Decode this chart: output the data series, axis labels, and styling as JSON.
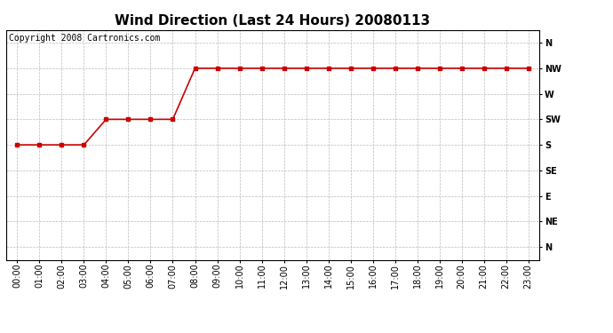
{
  "title": "Wind Direction (Last 24 Hours) 20080113",
  "copyright_text": "Copyright 2008 Cartronics.com",
  "x_labels": [
    "00:00",
    "01:00",
    "02:00",
    "03:00",
    "04:00",
    "05:00",
    "06:00",
    "07:00",
    "08:00",
    "09:00",
    "10:00",
    "11:00",
    "12:00",
    "13:00",
    "14:00",
    "15:00",
    "16:00",
    "17:00",
    "18:00",
    "19:00",
    "20:00",
    "21:00",
    "22:00",
    "23:00"
  ],
  "y_labels_bottom_to_top": [
    "N",
    "NE",
    "E",
    "SE",
    "S",
    "SW",
    "W",
    "NW",
    "N"
  ],
  "data_x": [
    0,
    1,
    2,
    3,
    4,
    5,
    6,
    7,
    8,
    9,
    10,
    11,
    12,
    13,
    14,
    15,
    16,
    17,
    18,
    19,
    20,
    21,
    22,
    23
  ],
  "data_y": [
    4,
    4,
    4,
    4,
    5,
    5,
    5,
    5,
    7,
    7,
    7,
    7,
    7,
    7,
    7,
    7,
    7,
    7,
    7,
    7,
    7,
    7,
    7,
    7
  ],
  "line_color": "#cc0000",
  "marker": "s",
  "marker_size": 3,
  "background_color": "#ffffff",
  "grid_color": "#bbbbbb",
  "title_fontsize": 11,
  "tick_fontsize": 7,
  "copyright_fontsize": 7
}
